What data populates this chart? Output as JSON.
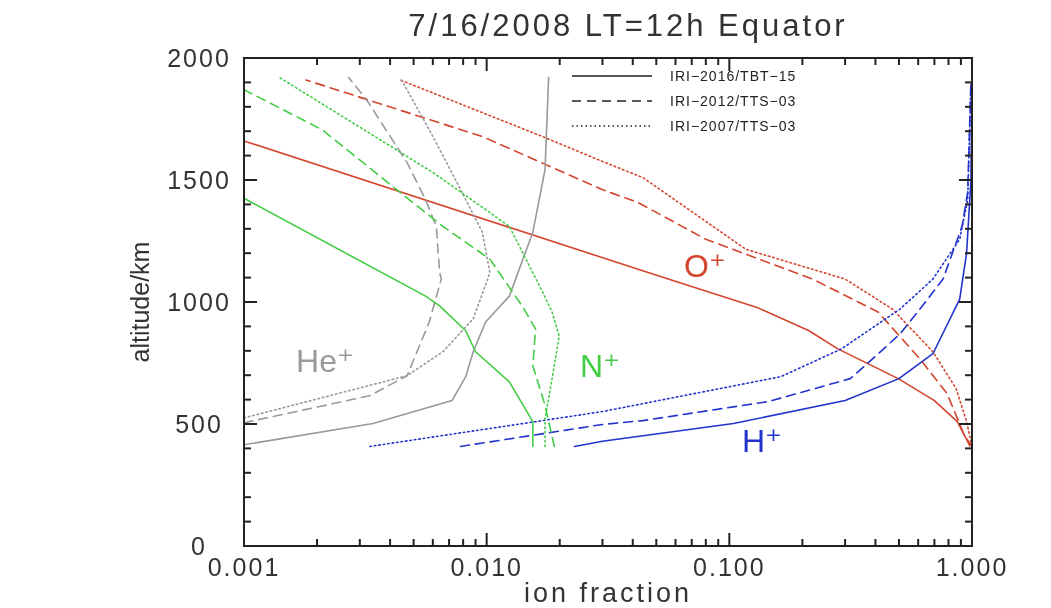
{
  "chart_data": {
    "type": "line",
    "title": "7/16/2008 LT=12h Equator",
    "xlabel": "ion fraction",
    "ylabel": "altitude/km",
    "log": "x",
    "xlim": [
      0.001,
      1
    ],
    "ylim": [
      0,
      2000
    ],
    "xticks": [
      {
        "value": 0.001,
        "label": "0.001"
      },
      {
        "value": 0.002,
        "label": null
      },
      {
        "value": 0.003,
        "label": null
      },
      {
        "value": 0.004,
        "label": null
      },
      {
        "value": 0.005,
        "label": null
      },
      {
        "value": 0.006,
        "label": null
      },
      {
        "value": 0.007,
        "label": null
      },
      {
        "value": 0.008,
        "label": null
      },
      {
        "value": 0.009,
        "label": null
      },
      {
        "value": 0.01,
        "label": "0.010"
      },
      {
        "value": 0.02,
        "label": null
      },
      {
        "value": 0.03,
        "label": null
      },
      {
        "value": 0.04,
        "label": null
      },
      {
        "value": 0.05,
        "label": null
      },
      {
        "value": 0.06,
        "label": null
      },
      {
        "value": 0.07,
        "label": null
      },
      {
        "value": 0.08,
        "label": null
      },
      {
        "value": 0.09,
        "label": null
      },
      {
        "value": 0.1,
        "label": "0.100"
      },
      {
        "value": 0.2,
        "label": null
      },
      {
        "value": 0.3,
        "label": null
      },
      {
        "value": 0.4,
        "label": null
      },
      {
        "value": 0.5,
        "label": null
      },
      {
        "value": 0.6,
        "label": null
      },
      {
        "value": 0.7,
        "label": null
      },
      {
        "value": 0.8,
        "label": null
      },
      {
        "value": 0.9,
        "label": null
      },
      {
        "value": 1,
        "label": "1.000"
      }
    ],
    "yticks": [
      0,
      {
        "value": 100,
        "label": null
      },
      {
        "value": 200,
        "label": null
      },
      {
        "value": 300,
        "label": null
      },
      {
        "value": 400,
        "label": null
      },
      500,
      {
        "value": 600,
        "label": null
      },
      {
        "value": 700,
        "label": null
      },
      {
        "value": 800,
        "label": null
      },
      {
        "value": 900,
        "label": null
      },
      1000,
      {
        "value": 1100,
        "label": null
      },
      {
        "value": 1200,
        "label": null
      },
      {
        "value": 1300,
        "label": null
      },
      {
        "value": 1400,
        "label": null
      },
      1500,
      {
        "value": 1600,
        "label": null
      },
      {
        "value": 1700,
        "label": null
      },
      {
        "value": 1800,
        "label": null
      },
      {
        "value": 1900,
        "label": null
      },
      2000
    ],
    "annotations": [
      "IRI−2016/TBT−15",
      "IRI−2012/TTS−03",
      "IRI−2007/TTS−03"
    ],
    "series": [
      {
        "name": "O⁺",
        "color": "#d4452e",
        "line_style": "solid",
        "x": [
          0.98,
          0.87,
          0.7,
          0.497,
          0.28,
          0.213,
          0.131,
          0.056,
          0.001
        ],
        "values": [
          410,
          510,
          596,
          686,
          808,
          882,
          976,
          1094,
          1660
        ]
      },
      {
        "color": "#d4452e",
        "line_style": "dashed",
        "x": [
          1,
          0.93,
          0.79,
          0.61,
          0.41,
          0.22,
          0.08,
          0.042,
          0.0299,
          0.0096,
          0.0018
        ],
        "values": [
          408,
          453,
          624,
          767,
          959,
          1094,
          1257,
          1408,
          1461,
          1678,
          1910
        ]
      },
      {
        "color": "#d4452e",
        "line_style": "dotted",
        "x": [
          1,
          0.95,
          0.86,
          0.69,
          0.47,
          0.3,
          0.117,
          0.044,
          0.03,
          0.017,
          0.0044
        ],
        "values": [
          408,
          510,
          645,
          796,
          971,
          1094,
          1216,
          1510,
          1576,
          1678,
          1910
        ]
      },
      {
        "name": "H⁺",
        "color": "#2233cc",
        "line_style": "solid",
        "x": [
          0.023,
          0.03,
          0.104,
          0.3,
          0.5,
          0.69,
          0.89,
          0.95,
          0.99,
          1
        ],
        "values": [
          408,
          429,
          502,
          596,
          686,
          788,
          1012,
          1200,
          1500,
          1920
        ]
      },
      {
        "color": "#2233cc",
        "line_style": "dashed",
        "x": [
          0.0078,
          0.03,
          0.044,
          0.145,
          0.315,
          0.37,
          0.505,
          0.61,
          0.76,
          0.91,
          0.96,
          0.99
        ],
        "values": [
          408,
          498,
          514,
          592,
          686,
          747,
          869,
          971,
          1094,
          1310,
          1449,
          1900
        ]
      },
      {
        "color": "#2233cc",
        "line_style": "dotted",
        "x": [
          0.0033,
          0.016,
          0.03,
          0.163,
          0.29,
          0.505,
          0.69,
          0.89,
          0.96,
          0.99
        ],
        "values": [
          408,
          510,
          551,
          694,
          808,
          971,
          1094,
          1257,
          1420,
          1900
        ]
      },
      {
        "name": "He⁺",
        "color": "#999999",
        "line_style": "solid",
        "x": [
          0.001,
          0.0034,
          0.0072,
          0.0082,
          0.0088,
          0.0099,
          0.0124,
          0.0155,
          0.0174,
          0.018
        ],
        "values": [
          415,
          502,
          596,
          694,
          796,
          918,
          1024,
          1286,
          1543,
          1920
        ]
      },
      {
        "color": "#999999",
        "line_style": "dashed",
        "x": [
          0.001,
          0.0033,
          0.0047,
          0.0058,
          0.0065,
          0.0064,
          0.0062,
          0.0056,
          0.0047,
          0.0032,
          0.0027
        ],
        "values": [
          505,
          616,
          698,
          918,
          1094,
          1122,
          1310,
          1420,
          1571,
          1829,
          1920
        ]
      },
      {
        "color": "#999999",
        "line_style": "dotted",
        "x": [
          0.001,
          0.0047,
          0.0066,
          0.0088,
          0.0101,
          0.0103,
          0.0096,
          0.0077,
          0.0058,
          0.0044
        ],
        "values": [
          525,
          698,
          796,
          931,
          1094,
          1122,
          1286,
          1473,
          1706,
          1920
        ]
      },
      {
        "name": "N⁺",
        "color": "#44cc44",
        "line_style": "solid",
        "x": [
          0.0155,
          0.0155,
          0.0124,
          0.009,
          0.0082,
          0.0064,
          0.0056,
          0.001
        ],
        "values": [
          408,
          510,
          673,
          796,
          882,
          984,
          1024,
          1425
        ]
      },
      {
        "color": "#44cc44",
        "line_style": "dashed",
        "x": [
          0.019,
          0.0174,
          0.0155,
          0.0159,
          0.014,
          0.0103,
          0.0066,
          0.0044,
          0.0021,
          0.001
        ],
        "values": [
          408,
          576,
          739,
          890,
          984,
          1176,
          1310,
          1449,
          1706,
          1870
        ]
      },
      {
        "color": "#44cc44",
        "line_style": "dotted",
        "x": [
          0.0174,
          0.0174,
          0.0186,
          0.0199,
          0.0186,
          0.017,
          0.0124,
          0.006,
          0.0028,
          0.0014
        ],
        "values": [
          408,
          522,
          686,
          861,
          959,
          1041,
          1310,
          1531,
          1735,
          1920
        ]
      }
    ]
  }
}
